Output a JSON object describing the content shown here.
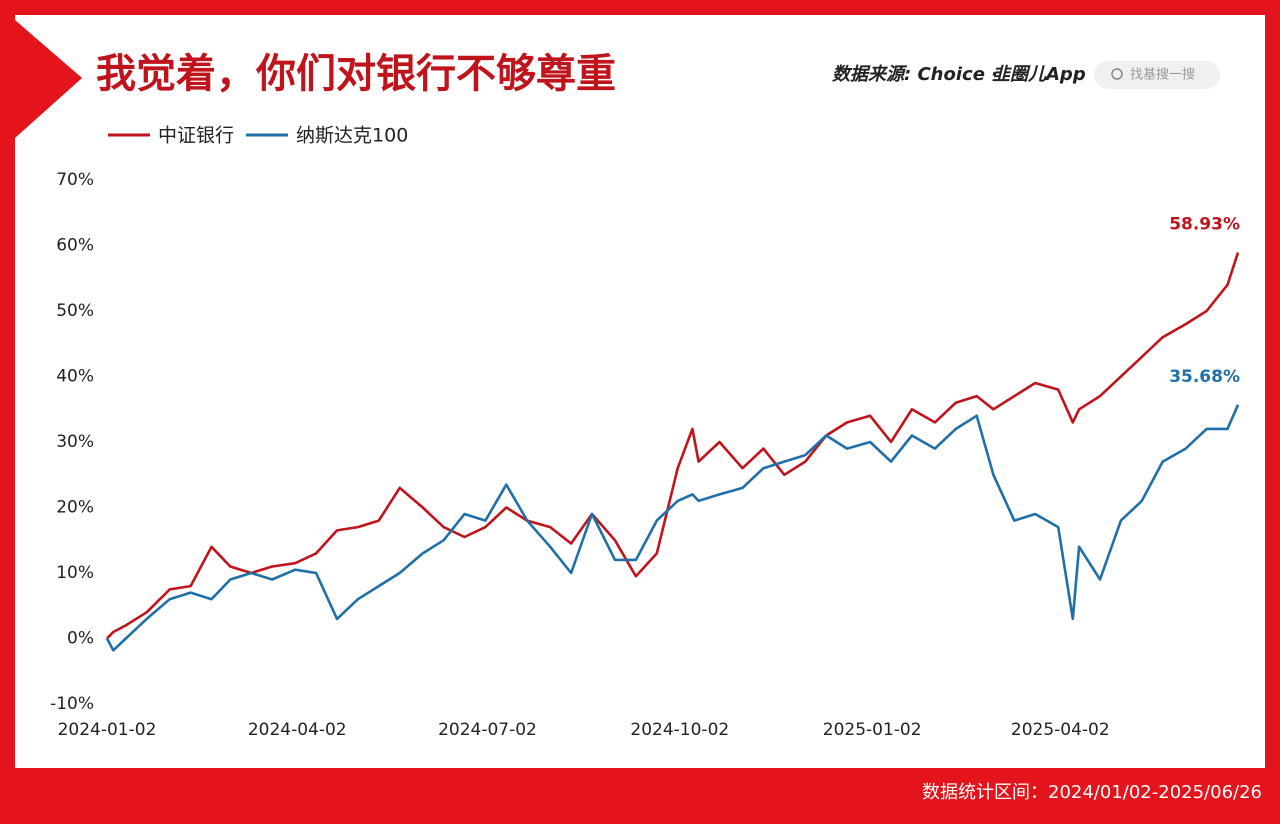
{
  "chart_data": {
    "type": "line",
    "title": "我觉着，你们对银行不够尊重",
    "source": "数据来源: Choice ·",
    "brand": "韭圈儿App",
    "search_placeholder": "找基搜一搜",
    "footer": "数据统计区间：2024/01/02-2025/06/26",
    "x": [
      "2024-01-02",
      "2024-01-05",
      "2024-01-11",
      "2024-01-21",
      "2024-02-01",
      "2024-02-11",
      "2024-02-21",
      "2024-03-01",
      "2024-03-11",
      "2024-03-21",
      "2024-04-01",
      "2024-04-11",
      "2024-04-21",
      "2024-05-01",
      "2024-05-11",
      "2024-05-21",
      "2024-06-01",
      "2024-06-11",
      "2024-06-21",
      "2024-07-01",
      "2024-07-11",
      "2024-07-21",
      "2024-08-01",
      "2024-08-11",
      "2024-08-21",
      "2024-09-01",
      "2024-09-11",
      "2024-09-21",
      "2024-10-01",
      "2024-10-08",
      "2024-10-11",
      "2024-10-21",
      "2024-11-01",
      "2024-11-11",
      "2024-11-21",
      "2024-12-01",
      "2024-12-11",
      "2024-12-21",
      "2025-01-01",
      "2025-01-11",
      "2025-01-21",
      "2025-02-01",
      "2025-02-11",
      "2025-02-21",
      "2025-03-01",
      "2025-03-11",
      "2025-03-21",
      "2025-04-01",
      "2025-04-08",
      "2025-04-11",
      "2025-04-21",
      "2025-05-01",
      "2025-05-11",
      "2025-05-21",
      "2025-06-01",
      "2025-06-11",
      "2025-06-21",
      "2025-06-26"
    ],
    "series": [
      {
        "name": "中证银行",
        "color": "#c0141d",
        "values": [
          0,
          1,
          2,
          4,
          7.5,
          8,
          14,
          11,
          10,
          11,
          11.5,
          13,
          16.5,
          17,
          18,
          23,
          20,
          17,
          15.5,
          17,
          20,
          18,
          17,
          14.5,
          19,
          15,
          9.5,
          13,
          26,
          32,
          27,
          30,
          26,
          29,
          25,
          27,
          31,
          33,
          34,
          30,
          35,
          33,
          36,
          37,
          35,
          37,
          39,
          38,
          33,
          35,
          37,
          40,
          43,
          46,
          48,
          50,
          54,
          58.93
        ],
        "value_labels": [
          null,
          null,
          null,
          null,
          null,
          null,
          null,
          null,
          null,
          null,
          null,
          null,
          null,
          null,
          null,
          null,
          null,
          null,
          null,
          null,
          null,
          null,
          null,
          null,
          null,
          null,
          null,
          null,
          null,
          null,
          null,
          null,
          null,
          null,
          null,
          null,
          null,
          null,
          null,
          null,
          null,
          null,
          null,
          null,
          null,
          null,
          null,
          null,
          null,
          null,
          null,
          null,
          null,
          null,
          null,
          null,
          null,
          "58.93%"
        ]
      },
      {
        "name": "纳斯达克100",
        "color": "#1f6fa8",
        "values": [
          0,
          -1.8,
          0,
          3,
          6,
          7,
          6,
          9,
          10,
          9,
          10.5,
          10,
          3,
          6,
          8,
          10,
          13,
          15,
          19,
          18,
          23.5,
          18,
          14,
          10,
          19,
          12,
          12,
          18,
          21,
          22,
          21,
          22,
          23,
          26,
          27,
          28,
          31,
          29,
          30,
          27,
          31,
          29,
          32,
          34,
          25,
          18,
          19,
          17,
          3,
          14,
          9,
          18,
          21,
          27,
          29,
          32,
          32,
          35.68
        ],
        "value_labels": [
          null,
          null,
          null,
          null,
          null,
          null,
          null,
          null,
          null,
          null,
          null,
          null,
          null,
          null,
          null,
          null,
          null,
          null,
          null,
          null,
          null,
          null,
          null,
          null,
          null,
          null,
          null,
          null,
          null,
          null,
          null,
          null,
          null,
          null,
          null,
          null,
          null,
          null,
          null,
          null,
          null,
          null,
          null,
          null,
          null,
          null,
          null,
          null,
          null,
          null,
          null,
          null,
          null,
          null,
          null,
          null,
          null,
          "35.68%"
        ]
      }
    ],
    "xlim": [
      "2024-01-02",
      "2025-06-26"
    ],
    "xticks": [
      "2024-01-02",
      "2024-04-02",
      "2024-07-02",
      "2024-10-02",
      "2025-01-02",
      "2025-04-02"
    ],
    "ylim": [
      -10,
      70
    ],
    "yticks": [
      {
        "value": -10,
        "label": "-10%"
      },
      {
        "value": 0,
        "label": "0%"
      },
      {
        "value": 10,
        "label": "10%"
      },
      {
        "value": 20,
        "label": "20%"
      },
      {
        "value": 30,
        "label": "30%"
      },
      {
        "value": 40,
        "label": "40%"
      },
      {
        "value": 50,
        "label": "50%"
      },
      {
        "value": 60,
        "label": "60%"
      },
      {
        "value": 70,
        "label": "70%"
      }
    ],
    "grid": false
  }
}
